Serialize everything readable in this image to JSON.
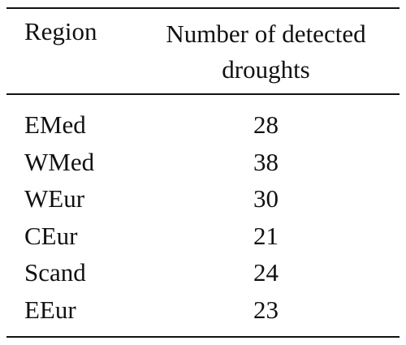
{
  "table": {
    "header": [
      "Region",
      "Number of detected droughts"
    ],
    "rows": [
      [
        "EMed",
        28
      ],
      [
        "WMed",
        38
      ],
      [
        "WEur",
        30
      ],
      [
        "CEur",
        21
      ],
      [
        "Scand",
        24
      ],
      [
        "EEur",
        23
      ]
    ]
  }
}
